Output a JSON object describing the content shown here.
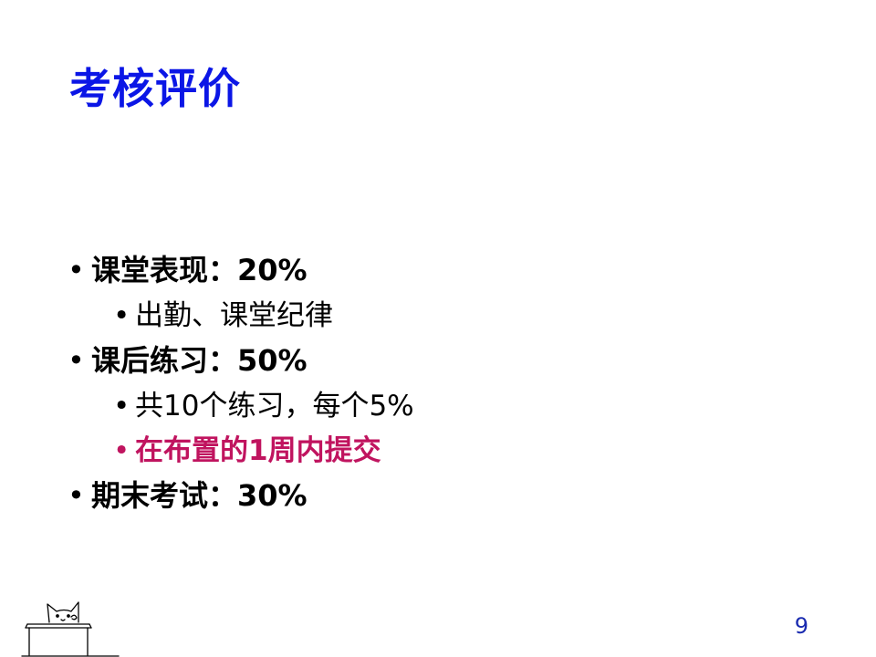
{
  "slide": {
    "title": "考核评价",
    "page_number": "9",
    "colors": {
      "title": "#0b16e6",
      "emphasis": "#c0145f",
      "page_number": "#1a2bb0"
    },
    "decoration": "cat-at-desk-doodle"
  },
  "items": [
    {
      "level": 1,
      "text": "课堂表现：20%"
    },
    {
      "level": 2,
      "text": "出勤、课堂纪律"
    },
    {
      "level": 1,
      "text": "课后练习：50%"
    },
    {
      "level": 2,
      "text": "共10个练习，每个5%"
    },
    {
      "level": 2,
      "text": "在布置的1周内提交",
      "emphasis": true
    },
    {
      "level": 1,
      "text": "期末考试：30%"
    }
  ],
  "bullet_glyph": "•"
}
